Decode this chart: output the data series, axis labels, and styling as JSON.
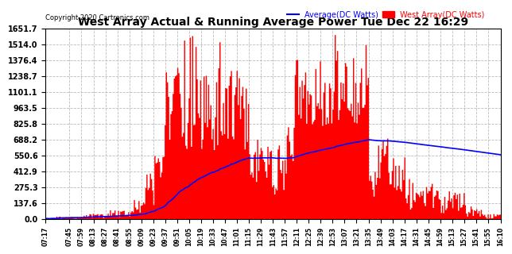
{
  "title": "West Array Actual & Running Average Power Tue Dec 22 16:29",
  "copyright": "Copyright 2020 Cartronics.com",
  "legend_avg": "Average(DC Watts)",
  "legend_west": "West Array(DC Watts)",
  "ylabel_values": [
    0.0,
    137.6,
    275.3,
    412.9,
    550.6,
    688.2,
    825.8,
    963.5,
    1101.1,
    1238.7,
    1376.4,
    1514.0,
    1651.7
  ],
  "ymax": 1651.7,
  "ymin": 0.0,
  "background_color": "#ffffff",
  "plot_bg_color": "#ffffff",
  "grid_color": "#bbbbbb",
  "fill_color": "#ff0000",
  "avg_color": "#0000ff",
  "west_color": "#ff0000",
  "title_color": "#000000",
  "tick_labels": [
    "07:17",
    "07:45",
    "07:59",
    "08:13",
    "08:27",
    "08:41",
    "08:55",
    "09:09",
    "09:23",
    "09:37",
    "09:51",
    "10:05",
    "10:19",
    "10:33",
    "10:47",
    "11:01",
    "11:15",
    "11:29",
    "11:43",
    "11:57",
    "12:11",
    "12:25",
    "12:39",
    "12:53",
    "13:07",
    "13:21",
    "13:35",
    "13:49",
    "14:03",
    "14:17",
    "14:31",
    "14:45",
    "14:59",
    "15:13",
    "15:27",
    "15:41",
    "15:55",
    "16:10"
  ],
  "seed": 17,
  "n_points": 400
}
